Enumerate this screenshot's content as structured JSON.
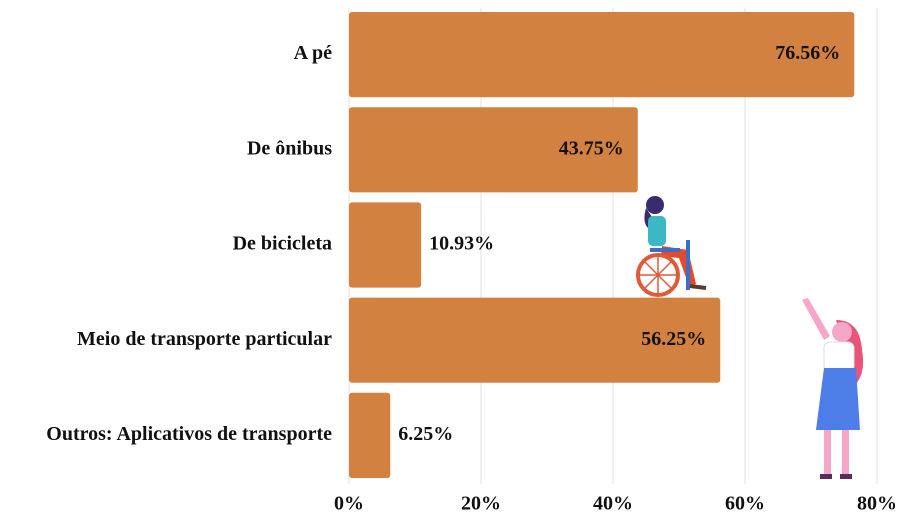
{
  "chart_data": {
    "type": "bar",
    "orientation": "horizontal",
    "categories": [
      "A pé",
      "De ônibus",
      "De bicicleta",
      "Meio de transporte particular",
      "Outros: Aplicativos de transporte"
    ],
    "values": [
      76.56,
      43.75,
      10.93,
      56.25,
      6.25
    ],
    "value_labels": [
      "76.56%",
      "43.75%",
      "10.93%",
      "56.25%",
      "6.25%"
    ],
    "color": "#d38140",
    "xlim": [
      0,
      80
    ],
    "xticks": [
      {
        "value": 0,
        "label": "0%"
      },
      {
        "value": 20,
        "label": "20%"
      },
      {
        "value": 40,
        "label": "40%"
      },
      {
        "value": 60,
        "label": "60%"
      },
      {
        "value": 80,
        "label": "80%"
      }
    ],
    "grid": true
  }
}
